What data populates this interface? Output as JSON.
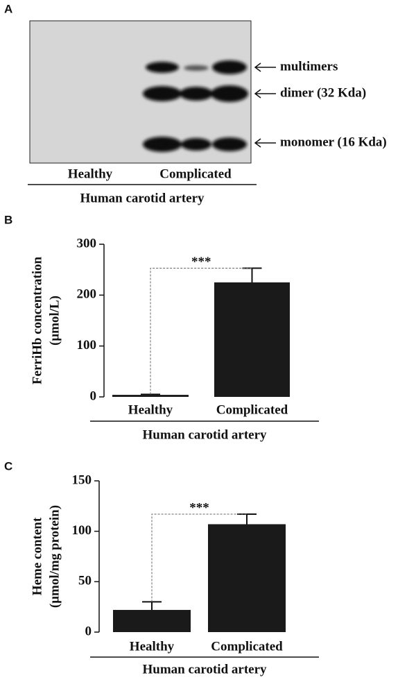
{
  "blot": {
    "panel_label": "A",
    "band_labels": [
      "multimers",
      "dimer (32 Kda)",
      "monomer (16 Kda)"
    ],
    "lanes": [
      "Healthy",
      "Complicated"
    ],
    "xlabel": "Human carotid artery"
  },
  "chart_data": [
    {
      "type": "bar",
      "panel_label": "B",
      "ylabel": [
        "FerriHb concentration",
        "(μmol/L)"
      ],
      "xlabel": "Human carotid artery",
      "categories": [
        "Healthy",
        "Complicated"
      ],
      "values": [
        4,
        225
      ],
      "errors": [
        1,
        28
      ],
      "color": "#1a1a1a",
      "ylim": [
        0,
        300
      ],
      "yticks": [
        0,
        100,
        200,
        300
      ],
      "annotation": "***"
    },
    {
      "type": "bar",
      "panel_label": "C",
      "ylabel": [
        "Heme content",
        "(μmol/mg protein)"
      ],
      "xlabel": "Human carotid artery",
      "categories": [
        "Healthy",
        "Complicated"
      ],
      "values": [
        22,
        107
      ],
      "errors": [
        8,
        10
      ],
      "color": "#1a1a1a",
      "ylim": [
        0,
        150
      ],
      "yticks": [
        0,
        50,
        100,
        150
      ],
      "annotation": "***"
    }
  ]
}
